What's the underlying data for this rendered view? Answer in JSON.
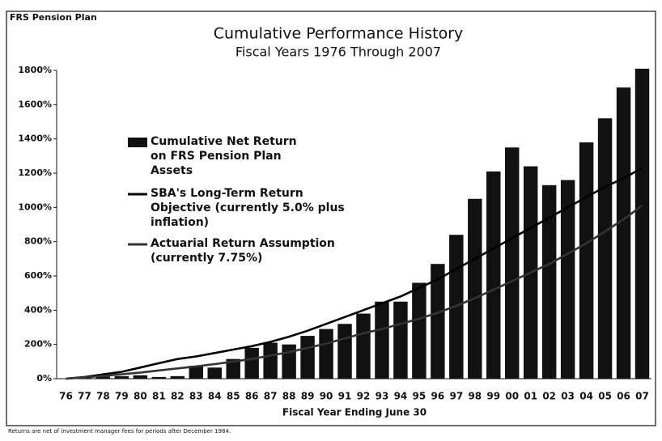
{
  "chart_data": {
    "type": "bar",
    "header": "FRS Pension Plan",
    "title": "Cumulative Performance History",
    "subtitle": "Fiscal Years 1976 Through 2007",
    "x_label": "Fiscal Year Ending June 30",
    "footnote": "Returns are net of investment manager fees for periods after December 1984.",
    "categories": [
      "76",
      "77",
      "78",
      "79",
      "80",
      "81",
      "82",
      "83",
      "84",
      "85",
      "86",
      "87",
      "88",
      "89",
      "90",
      "91",
      "92",
      "93",
      "94",
      "95",
      "96",
      "97",
      "98",
      "99",
      "00",
      "01",
      "02",
      "03",
      "04",
      "05",
      "06",
      "07"
    ],
    "series": [
      {
        "name": "Cumulative Net Return on FRS Pension Plan Assets",
        "type": "bar",
        "color": "#111111",
        "values": [
          0,
          8,
          12,
          15,
          20,
          10,
          15,
          75,
          65,
          115,
          180,
          210,
          200,
          250,
          290,
          320,
          380,
          450,
          450,
          560,
          670,
          840,
          1050,
          1210,
          1350,
          1240,
          1130,
          1160,
          1380,
          1520,
          1700,
          1810
        ]
      },
      {
        "name": "SBA's Long-Term Return Objective (currently 5.0% plus inflation)",
        "type": "line",
        "color": "#000000",
        "values": [
          0,
          10,
          25,
          40,
          65,
          90,
          115,
          130,
          150,
          170,
          190,
          215,
          245,
          280,
          320,
          360,
          400,
          440,
          480,
          530,
          580,
          640,
          700,
          760,
          820,
          880,
          940,
          1000,
          1060,
          1120,
          1170,
          1230
        ]
      },
      {
        "name": "Actuarial Return Assumption (currently 7.75%)",
        "type": "line",
        "color": "#333333",
        "values": [
          0,
          8,
          16,
          26,
          36,
          48,
          60,
          72,
          85,
          100,
          115,
          135,
          155,
          180,
          205,
          235,
          265,
          290,
          320,
          350,
          385,
          425,
          470,
          520,
          570,
          620,
          670,
          730,
          790,
          860,
          930,
          1010
        ]
      }
    ],
    "ylim": [
      0,
      1800
    ],
    "yticks": [
      {
        "value": 0,
        "label": "0%"
      },
      {
        "value": 200,
        "label": "200%"
      },
      {
        "value": 400,
        "label": "400%"
      },
      {
        "value": 600,
        "label": "600%"
      },
      {
        "value": 800,
        "label": "800%"
      },
      {
        "value": 1000,
        "label": "1000%"
      },
      {
        "value": 1200,
        "label": "1200%"
      },
      {
        "value": 1400,
        "label": "1400%"
      },
      {
        "value": 1600,
        "label": "1600%"
      },
      {
        "value": 1800,
        "label": "1800%"
      }
    ],
    "grid": false
  }
}
